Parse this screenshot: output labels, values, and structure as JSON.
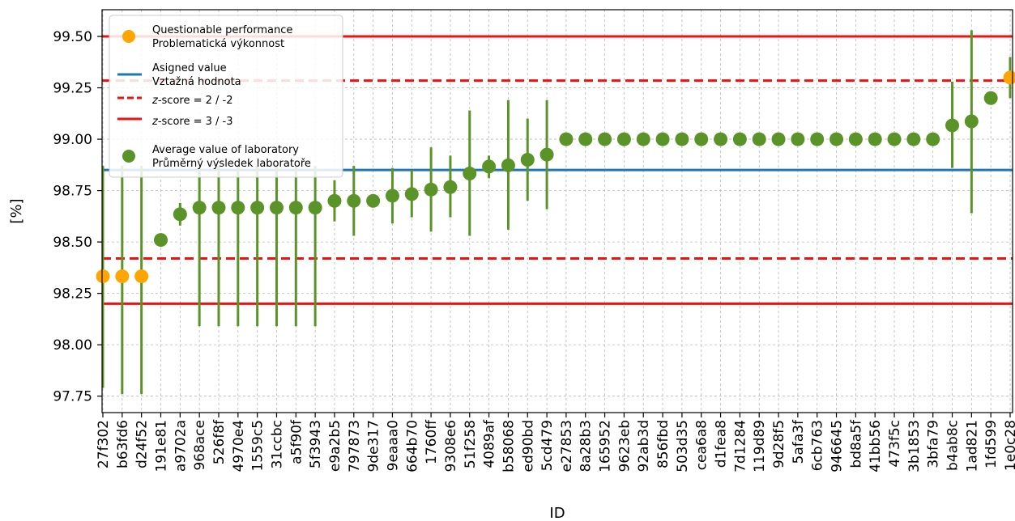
{
  "chart_data": {
    "type": "scatter",
    "xlabel": "ID",
    "ylabel": "[%]",
    "ylim": [
      97.67,
      99.63
    ],
    "yticks": [
      "97.75",
      "98.00",
      "98.25",
      "98.50",
      "98.75",
      "99.00",
      "99.25",
      "99.50"
    ],
    "grid": true,
    "legend_position": "top-left",
    "colors": {
      "questionable": "#ffa500",
      "average": "#5a9428",
      "assigned": "#1f77b4",
      "limit": "#ee1111"
    },
    "reference_lines": {
      "assigned_value": 98.85,
      "z2_upper": 99.285,
      "z2_lower": 98.42,
      "z3_upper": 99.5,
      "z3_lower": 98.2
    },
    "legend": [
      {
        "kind": "questionable",
        "line1": "Questionable performance",
        "line2": "Problematická výkonnost"
      },
      {
        "kind": "assigned",
        "line1": "Asigned value",
        "line2": "Vztažná hodnota"
      },
      {
        "kind": "z2",
        "italic": "z",
        "line1": "-score = 2 / -2",
        "line2": ""
      },
      {
        "kind": "z3",
        "italic": "z",
        "line1": "-score = 3 / -3",
        "line2": ""
      },
      {
        "kind": "average",
        "line1": "Average value of laboratory",
        "line2": "Průměrný výsledek laboratoře"
      }
    ],
    "labs": [
      {
        "id": "27f302",
        "value": 98.333,
        "low": 97.79,
        "high": 98.87,
        "questionable": true
      },
      {
        "id": "b63fd6",
        "value": 98.333,
        "low": 97.76,
        "high": 98.87,
        "questionable": true
      },
      {
        "id": "d24f52",
        "value": 98.333,
        "low": 97.76,
        "high": 98.87,
        "questionable": true
      },
      {
        "id": "191e81",
        "value": 98.51,
        "low": null,
        "high": null,
        "questionable": false
      },
      {
        "id": "a9702a",
        "value": 98.635,
        "low": 98.58,
        "high": 98.69,
        "questionable": false
      },
      {
        "id": "968ace",
        "value": 98.667,
        "low": 98.09,
        "high": 98.87,
        "questionable": false
      },
      {
        "id": "526f8f",
        "value": 98.667,
        "low": 98.09,
        "high": 98.87,
        "questionable": false
      },
      {
        "id": "4970e4",
        "value": 98.667,
        "low": 98.09,
        "high": 98.87,
        "questionable": false
      },
      {
        "id": "1559c5",
        "value": 98.667,
        "low": 98.09,
        "high": 98.87,
        "questionable": false
      },
      {
        "id": "31ccbc",
        "value": 98.667,
        "low": 98.09,
        "high": 98.87,
        "questionable": false
      },
      {
        "id": "a5f90f",
        "value": 98.667,
        "low": 98.09,
        "high": 98.87,
        "questionable": false
      },
      {
        "id": "5f3943",
        "value": 98.667,
        "low": 98.09,
        "high": 98.87,
        "questionable": false
      },
      {
        "id": "e9a2b5",
        "value": 98.7,
        "low": 98.6,
        "high": 98.8,
        "questionable": false
      },
      {
        "id": "797873",
        "value": 98.7,
        "low": 98.53,
        "high": 98.87,
        "questionable": false
      },
      {
        "id": "9de317",
        "value": 98.7,
        "low": null,
        "high": null,
        "questionable": false
      },
      {
        "id": "9eaaa0",
        "value": 98.725,
        "low": 98.59,
        "high": 98.86,
        "questionable": false
      },
      {
        "id": "664b70",
        "value": 98.733,
        "low": 98.62,
        "high": 98.85,
        "questionable": false
      },
      {
        "id": "1760ff",
        "value": 98.755,
        "low": 98.55,
        "high": 98.96,
        "questionable": false
      },
      {
        "id": "9308e6",
        "value": 98.767,
        "low": 98.62,
        "high": 98.92,
        "questionable": false
      },
      {
        "id": "51f258",
        "value": 98.833,
        "low": 98.53,
        "high": 99.14,
        "questionable": false
      },
      {
        "id": "4089af",
        "value": 98.867,
        "low": 98.81,
        "high": 98.92,
        "questionable": false
      },
      {
        "id": "b58068",
        "value": 98.873,
        "low": 98.56,
        "high": 99.19,
        "questionable": false
      },
      {
        "id": "ed90bd",
        "value": 98.9,
        "low": 98.7,
        "high": 99.1,
        "questionable": false
      },
      {
        "id": "5cd479",
        "value": 98.925,
        "low": 98.66,
        "high": 99.19,
        "questionable": false
      },
      {
        "id": "e27853",
        "value": 99.0,
        "low": null,
        "high": null,
        "questionable": false
      },
      {
        "id": "8a28b3",
        "value": 99.0,
        "low": null,
        "high": null,
        "questionable": false
      },
      {
        "id": "165952",
        "value": 99.0,
        "low": null,
        "high": null,
        "questionable": false
      },
      {
        "id": "9623eb",
        "value": 99.0,
        "low": null,
        "high": null,
        "questionable": false
      },
      {
        "id": "92ab3d",
        "value": 99.0,
        "low": null,
        "high": null,
        "questionable": false
      },
      {
        "id": "856fbd",
        "value": 99.0,
        "low": null,
        "high": null,
        "questionable": false
      },
      {
        "id": "503d35",
        "value": 99.0,
        "low": null,
        "high": null,
        "questionable": false
      },
      {
        "id": "cea6a8",
        "value": 99.0,
        "low": null,
        "high": null,
        "questionable": false
      },
      {
        "id": "d1fea8",
        "value": 99.0,
        "low": null,
        "high": null,
        "questionable": false
      },
      {
        "id": "7d1284",
        "value": 99.0,
        "low": null,
        "high": null,
        "questionable": false
      },
      {
        "id": "119d89",
        "value": 99.0,
        "low": null,
        "high": null,
        "questionable": false
      },
      {
        "id": "9d28f5",
        "value": 99.0,
        "low": null,
        "high": null,
        "questionable": false
      },
      {
        "id": "5afa3f",
        "value": 99.0,
        "low": null,
        "high": null,
        "questionable": false
      },
      {
        "id": "6cb763",
        "value": 99.0,
        "low": null,
        "high": null,
        "questionable": false
      },
      {
        "id": "946645",
        "value": 99.0,
        "low": null,
        "high": null,
        "questionable": false
      },
      {
        "id": "bd8a5f",
        "value": 99.0,
        "low": null,
        "high": null,
        "questionable": false
      },
      {
        "id": "41bb56",
        "value": 99.0,
        "low": null,
        "high": null,
        "questionable": false
      },
      {
        "id": "473f5c",
        "value": 99.0,
        "low": null,
        "high": null,
        "questionable": false
      },
      {
        "id": "3b1853",
        "value": 99.0,
        "low": null,
        "high": null,
        "questionable": false
      },
      {
        "id": "3bfa79",
        "value": 99.0,
        "low": null,
        "high": null,
        "questionable": false
      },
      {
        "id": "b4ab8c",
        "value": 99.067,
        "low": 98.86,
        "high": 99.28,
        "questionable": false
      },
      {
        "id": "1ad821",
        "value": 99.087,
        "low": 98.64,
        "high": 99.53,
        "questionable": false
      },
      {
        "id": "1fd599",
        "value": 99.2,
        "low": null,
        "high": null,
        "questionable": false
      },
      {
        "id": "1e0c28",
        "value": 99.3,
        "low": 99.2,
        "high": 99.4,
        "questionable": true
      }
    ]
  }
}
